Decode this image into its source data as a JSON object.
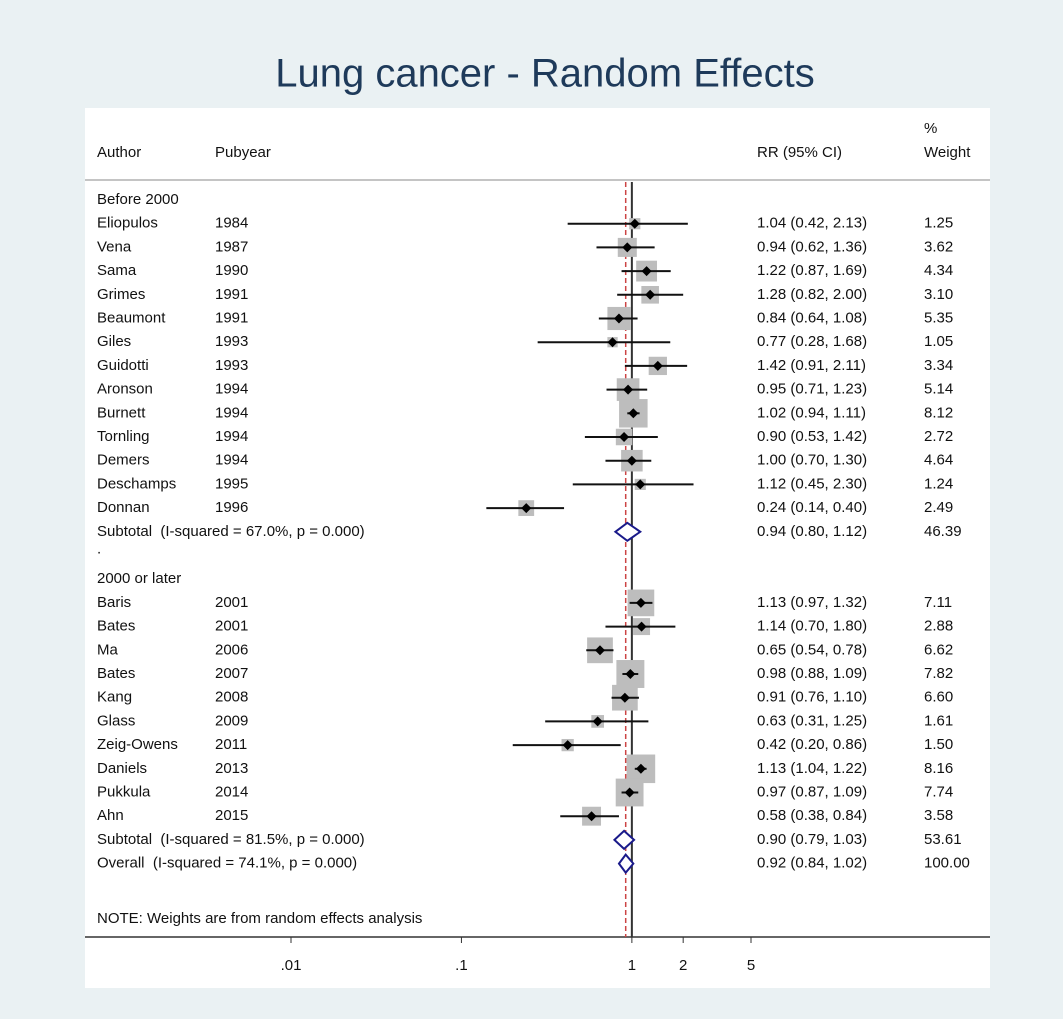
{
  "chart_data": {
    "type": "forest",
    "title": "Lung cancer - Random Effects",
    "columns": {
      "author": "Author",
      "year": "Pubyear",
      "estimate": "RR (95% CI)",
      "weight": [
        "%",
        "Weight"
      ]
    },
    "xscale": "log",
    "xlim": [
      0.01,
      5
    ],
    "xticks": [
      {
        "value": 0.01,
        "label": ".01"
      },
      {
        "value": 0.1,
        "label": ".1"
      },
      1,
      2,
      5
    ],
    "reference_color": "#c44",
    "groups": [
      {
        "name": "Before 2000",
        "studies": [
          {
            "author": "Eliopulos",
            "year": 1984,
            "rr": 1.04,
            "ci": [
              0.42,
              2.13
            ],
            "weight": 1.25,
            "label": "1.04 (0.42, 2.13)",
            "weight_label": "1.25"
          },
          {
            "author": "Vena",
            "year": 1987,
            "rr": 0.94,
            "ci": [
              0.62,
              1.36
            ],
            "weight": 3.62,
            "label": "0.94 (0.62, 1.36)",
            "weight_label": "3.62"
          },
          {
            "author": "Sama",
            "year": 1990,
            "rr": 1.22,
            "ci": [
              0.87,
              1.69
            ],
            "weight": 4.34,
            "label": "1.22 (0.87, 1.69)",
            "weight_label": "4.34"
          },
          {
            "author": "Grimes",
            "year": 1991,
            "rr": 1.28,
            "ci": [
              0.82,
              2.0
            ],
            "weight": 3.1,
            "label": "1.28 (0.82, 2.00)",
            "weight_label": "3.10"
          },
          {
            "author": "Beaumont",
            "year": 1991,
            "rr": 0.84,
            "ci": [
              0.64,
              1.08
            ],
            "weight": 5.35,
            "label": "0.84 (0.64, 1.08)",
            "weight_label": "5.35"
          },
          {
            "author": "Giles",
            "year": 1993,
            "rr": 0.77,
            "ci": [
              0.28,
              1.68
            ],
            "weight": 1.05,
            "label": "0.77 (0.28, 1.68)",
            "weight_label": "1.05"
          },
          {
            "author": "Guidotti",
            "year": 1993,
            "rr": 1.42,
            "ci": [
              0.91,
              2.11
            ],
            "weight": 3.34,
            "label": "1.42 (0.91, 2.11)",
            "weight_label": "3.34"
          },
          {
            "author": "Aronson",
            "year": 1994,
            "rr": 0.95,
            "ci": [
              0.71,
              1.23
            ],
            "weight": 5.14,
            "label": "0.95 (0.71, 1.23)",
            "weight_label": "5.14"
          },
          {
            "author": "Burnett",
            "year": 1994,
            "rr": 1.02,
            "ci": [
              0.94,
              1.11
            ],
            "weight": 8.12,
            "label": "1.02 (0.94, 1.11)",
            "weight_label": "8.12"
          },
          {
            "author": "Tornling",
            "year": 1994,
            "rr": 0.9,
            "ci": [
              0.53,
              1.42
            ],
            "weight": 2.72,
            "label": "0.90 (0.53, 1.42)",
            "weight_label": "2.72"
          },
          {
            "author": "Demers",
            "year": 1994,
            "rr": 1.0,
            "ci": [
              0.7,
              1.3
            ],
            "weight": 4.64,
            "label": "1.00 (0.70, 1.30)",
            "weight_label": "4.64"
          },
          {
            "author": "Deschamps",
            "year": 1995,
            "rr": 1.12,
            "ci": [
              0.45,
              2.3
            ],
            "weight": 1.24,
            "label": "1.12 (0.45, 2.30)",
            "weight_label": "1.24"
          },
          {
            "author": "Donnan",
            "year": 1996,
            "rr": 0.24,
            "ci": [
              0.14,
              0.4
            ],
            "weight": 2.49,
            "label": "0.24 (0.14, 0.40)",
            "weight_label": "2.49"
          }
        ],
        "subtotal": {
          "name": "Subtotal  (I-squared = 67.0%, p = 0.000)",
          "rr": 0.94,
          "ci": [
            0.8,
            1.12
          ],
          "weight": 46.39,
          "label": "0.94 (0.80, 1.12)",
          "weight_label": "46.39"
        },
        "separator": "."
      },
      {
        "name": "2000 or later",
        "studies": [
          {
            "author": "Baris",
            "year": 2001,
            "rr": 1.13,
            "ci": [
              0.97,
              1.32
            ],
            "weight": 7.11,
            "label": "1.13 (0.97, 1.32)",
            "weight_label": "7.11"
          },
          {
            "author": "Bates",
            "year": 2001,
            "rr": 1.14,
            "ci": [
              0.7,
              1.8
            ],
            "weight": 2.88,
            "label": "1.14 (0.70, 1.80)",
            "weight_label": "2.88"
          },
          {
            "author": "Ma",
            "year": 2006,
            "rr": 0.65,
            "ci": [
              0.54,
              0.78
            ],
            "weight": 6.62,
            "label": "0.65 (0.54, 0.78)",
            "weight_label": "6.62"
          },
          {
            "author": "Bates",
            "year": 2007,
            "rr": 0.98,
            "ci": [
              0.88,
              1.09
            ],
            "weight": 7.82,
            "label": "0.98 (0.88, 1.09)",
            "weight_label": "7.82"
          },
          {
            "author": "Kang",
            "year": 2008,
            "rr": 0.91,
            "ci": [
              0.76,
              1.1
            ],
            "weight": 6.6,
            "label": "0.91 (0.76, 1.10)",
            "weight_label": "6.60"
          },
          {
            "author": "Glass",
            "year": 2009,
            "rr": 0.63,
            "ci": [
              0.31,
              1.25
            ],
            "weight": 1.61,
            "label": "0.63 (0.31, 1.25)",
            "weight_label": "1.61"
          },
          {
            "author": "Zeig-Owens",
            "year": 2011,
            "rr": 0.42,
            "ci": [
              0.2,
              0.86
            ],
            "weight": 1.5,
            "label": "0.42 (0.20, 0.86)",
            "weight_label": "1.50"
          },
          {
            "author": "Daniels",
            "year": 2013,
            "rr": 1.13,
            "ci": [
              1.04,
              1.22
            ],
            "weight": 8.16,
            "label": "1.13 (1.04, 1.22)",
            "weight_label": "8.16"
          },
          {
            "author": "Pukkula",
            "year": 2014,
            "rr": 0.97,
            "ci": [
              0.87,
              1.09
            ],
            "weight": 7.74,
            "label": "0.97 (0.87, 1.09)",
            "weight_label": "7.74"
          },
          {
            "author": "Ahn",
            "year": 2015,
            "rr": 0.58,
            "ci": [
              0.38,
              0.84
            ],
            "weight": 3.58,
            "label": "0.58 (0.38, 0.84)",
            "weight_label": "3.58"
          }
        ],
        "subtotal": {
          "name": "Subtotal  (I-squared = 81.5%, p = 0.000)",
          "rr": 0.9,
          "ci": [
            0.79,
            1.03
          ],
          "weight": 53.61,
          "label": "0.90 (0.79, 1.03)",
          "weight_label": "53.61"
        },
        "separator": "."
      }
    ],
    "overall": {
      "name": "Overall  (I-squared = 74.1%, p = 0.000)",
      "rr": 0.92,
      "ci": [
        0.84,
        1.02
      ],
      "weight": 100,
      "label": "0.92 (0.84, 1.02)",
      "weight_label": "100.00"
    },
    "note": "NOTE: Weights are from random effects analysis"
  }
}
